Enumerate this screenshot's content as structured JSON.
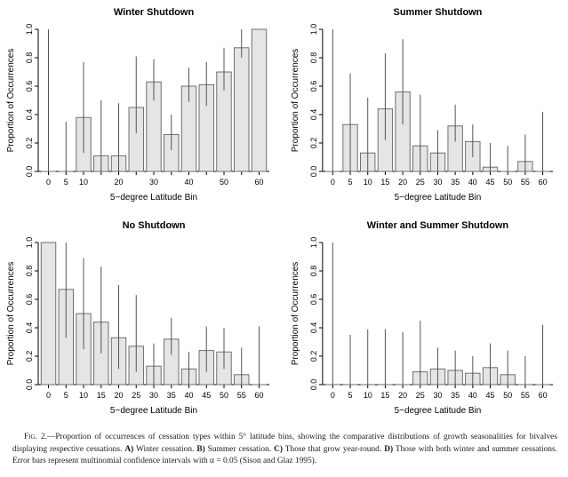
{
  "colors": {
    "bar_fill": "#e5e5e7",
    "bar_border": "#6f6f6f",
    "error_bar": "#545454",
    "axis": "#000000",
    "background": "#ffffff"
  },
  "figure": {
    "caption": {
      "parts": [
        {
          "text": "Fig. 2.",
          "style": "sc"
        },
        {
          "text": "—Proportion of occurrences of cessation types within 5° latitude bins, showing the comparative distributions of growth seasonalities for bivalves displaying respective cessations. ",
          "style": "n"
        },
        {
          "text": "A)",
          "style": "b"
        },
        {
          "text": " Winter cessation. ",
          "style": "n"
        },
        {
          "text": "B)",
          "style": "b"
        },
        {
          "text": " Summer cessation. ",
          "style": "n"
        },
        {
          "text": "C)",
          "style": "b"
        },
        {
          "text": " Those that grow year-round. ",
          "style": "n"
        },
        {
          "text": "D)",
          "style": "b"
        },
        {
          "text": " Those with both winter and summer cessations. Error bars represent multinomial confidence intervals with α = 0.05 (Sison and Glaz 1995).",
          "style": "n"
        }
      ]
    }
  },
  "chart_data": [
    {
      "type": "bar",
      "title": "Winter Shutdown",
      "xlabel": "5−degree Latitude Bin",
      "ylabel": "Proportion of Occurrences",
      "ylim": [
        0,
        1.0
      ],
      "yticks": [
        0.0,
        0.2,
        0.4,
        0.6,
        0.8,
        1.0
      ],
      "ytick_labels": [
        "0.0",
        "0.2",
        "0.4",
        "0.6",
        "0.8",
        "1.0"
      ],
      "categories": [
        "0",
        "5",
        "10",
        "15",
        "20",
        "25",
        "30",
        "35",
        "40",
        "45",
        "50",
        "55",
        "60"
      ],
      "xtick_labels": [
        "0",
        "5",
        "10",
        "",
        "20",
        "",
        "30",
        "",
        "40",
        "",
        "50",
        "",
        "60"
      ],
      "values": [
        0,
        0,
        0.38,
        0.11,
        0.11,
        0.45,
        0.63,
        0.26,
        0.6,
        0.61,
        0.7,
        0.87,
        1.0
      ],
      "error_low": [
        0,
        0,
        0.13,
        0,
        0,
        0.27,
        0.5,
        0.15,
        0.49,
        0.46,
        0.57,
        0.8,
        null
      ],
      "error_high": [
        1.0,
        0.35,
        0.77,
        0.5,
        0.48,
        0.81,
        0.79,
        0.4,
        0.73,
        0.77,
        0.87,
        1.0,
        null
      ]
    },
    {
      "type": "bar",
      "title": "Summer Shutdown",
      "xlabel": "5−degree Latitude Bin",
      "ylabel": "Proportion of Occurrences",
      "ylim": [
        0,
        1.0
      ],
      "yticks": [
        0.0,
        0.2,
        0.4,
        0.6,
        0.8,
        1.0
      ],
      "ytick_labels": [
        "0.0",
        "0.2",
        "0.4",
        "0.6",
        "0.8",
        "1.0"
      ],
      "categories": [
        "0",
        "5",
        "10",
        "15",
        "20",
        "25",
        "30",
        "35",
        "40",
        "45",
        "50",
        "55",
        "60"
      ],
      "xtick_labels": [
        "0",
        "5",
        "10",
        "15",
        "20",
        "25",
        "30",
        "35",
        "40",
        "45",
        "50",
        "55",
        "60"
      ],
      "values": [
        0,
        0.33,
        0.13,
        0.44,
        0.56,
        0.18,
        0.13,
        0.32,
        0.21,
        0.03,
        0,
        0.07,
        0
      ],
      "error_low": [
        0,
        0,
        0,
        0.22,
        0.33,
        0,
        0,
        0.21,
        0.1,
        0,
        0,
        0,
        0
      ],
      "error_high": [
        1.0,
        0.69,
        0.52,
        0.83,
        0.93,
        0.54,
        0.29,
        0.47,
        0.33,
        0.2,
        0.18,
        0.26,
        0.42
      ]
    },
    {
      "type": "bar",
      "title": "No Shutdown",
      "xlabel": "5−degree Latitude Bin",
      "ylabel": "Proportion of Occurrences",
      "ylim": [
        0,
        1.0
      ],
      "yticks": [
        0.0,
        0.2,
        0.4,
        0.6,
        0.8,
        1.0
      ],
      "ytick_labels": [
        "0.0",
        "0.2",
        "0.4",
        "0.6",
        "0.8",
        "1.0"
      ],
      "categories": [
        "0",
        "5",
        "10",
        "15",
        "20",
        "25",
        "30",
        "35",
        "40",
        "45",
        "50",
        "55",
        "60"
      ],
      "xtick_labels": [
        "0",
        "5",
        "10",
        "15",
        "20",
        "25",
        "30",
        "35",
        "40",
        "45",
        "50",
        "55",
        "60"
      ],
      "values": [
        1.0,
        0.67,
        0.5,
        0.44,
        0.33,
        0.27,
        0.13,
        0.32,
        0.11,
        0.24,
        0.23,
        0.07,
        0
      ],
      "error_low": [
        null,
        0.33,
        0.25,
        0.22,
        0.11,
        0.09,
        0,
        0.21,
        0,
        0.09,
        0.11,
        0,
        0
      ],
      "error_high": [
        null,
        1.0,
        0.89,
        0.83,
        0.7,
        0.63,
        0.29,
        0.47,
        0.23,
        0.41,
        0.4,
        0.26,
        0.41
      ]
    },
    {
      "type": "bar",
      "title": "Winter and Summer Shutdown",
      "xlabel": "5−degree Latitude Bin",
      "ylabel": "Proportion of Occurrences",
      "ylim": [
        0,
        1.0
      ],
      "yticks": [
        0.0,
        0.2,
        0.4,
        0.6,
        0.8,
        1.0
      ],
      "ytick_labels": [
        "0.0",
        "0.2",
        "0.4",
        "0.6",
        "0.8",
        "1.0"
      ],
      "categories": [
        "0",
        "5",
        "10",
        "15",
        "20",
        "25",
        "30",
        "35",
        "40",
        "45",
        "50",
        "55",
        "60"
      ],
      "xtick_labels": [
        "0",
        "5",
        "10",
        "15",
        "20",
        "25",
        "30",
        "35",
        "40",
        "45",
        "50",
        "55",
        "60"
      ],
      "values": [
        0,
        0,
        0,
        0,
        0,
        0.09,
        0.11,
        0.1,
        0.08,
        0.12,
        0.07,
        0,
        0
      ],
      "error_low": [
        0,
        0,
        0,
        0,
        0,
        0,
        0,
        0,
        0,
        0,
        0,
        0,
        0
      ],
      "error_high": [
        1.0,
        0.35,
        0.39,
        0.39,
        0.37,
        0.45,
        0.26,
        0.24,
        0.2,
        0.29,
        0.24,
        0.2,
        0.42
      ]
    }
  ]
}
